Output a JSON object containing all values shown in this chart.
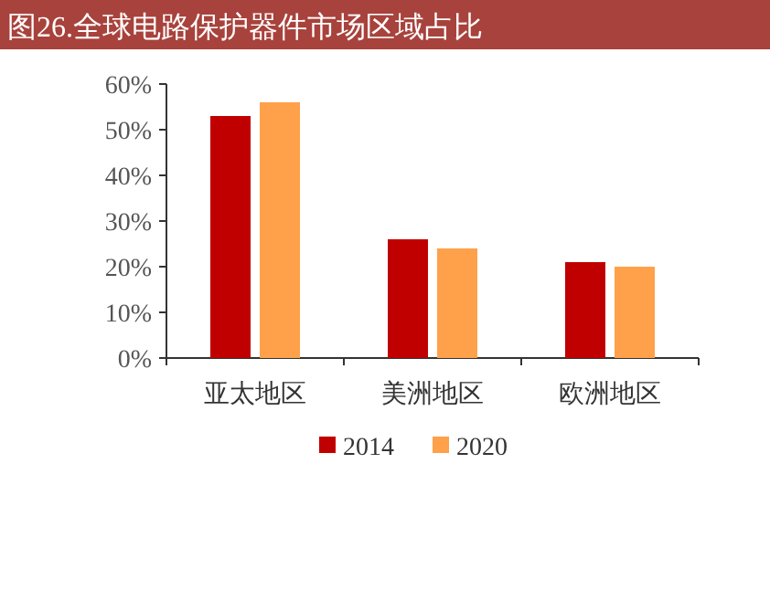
{
  "chart_data": {
    "type": "bar",
    "title": "图26.全球电路保护器件市场区域占比",
    "categories": [
      "亚太地区",
      "美洲地区",
      "欧洲地区"
    ],
    "series": [
      {
        "name": "2014",
        "color": "#c00000",
        "values": [
          53,
          26,
          21
        ]
      },
      {
        "name": "2020",
        "color": "#ffa04a",
        "values": [
          56,
          24,
          20
        ]
      }
    ],
    "ylim": [
      0,
      60
    ],
    "yticks": [
      {
        "value": 0,
        "label": "0%"
      },
      {
        "value": 10,
        "label": "10%"
      },
      {
        "value": 20,
        "label": "20%"
      },
      {
        "value": 30,
        "label": "30%"
      },
      {
        "value": 40,
        "label": "40%"
      },
      {
        "value": 50,
        "label": "50%"
      },
      {
        "value": 60,
        "label": "60%"
      }
    ],
    "grid": false,
    "legend": "bottom"
  }
}
